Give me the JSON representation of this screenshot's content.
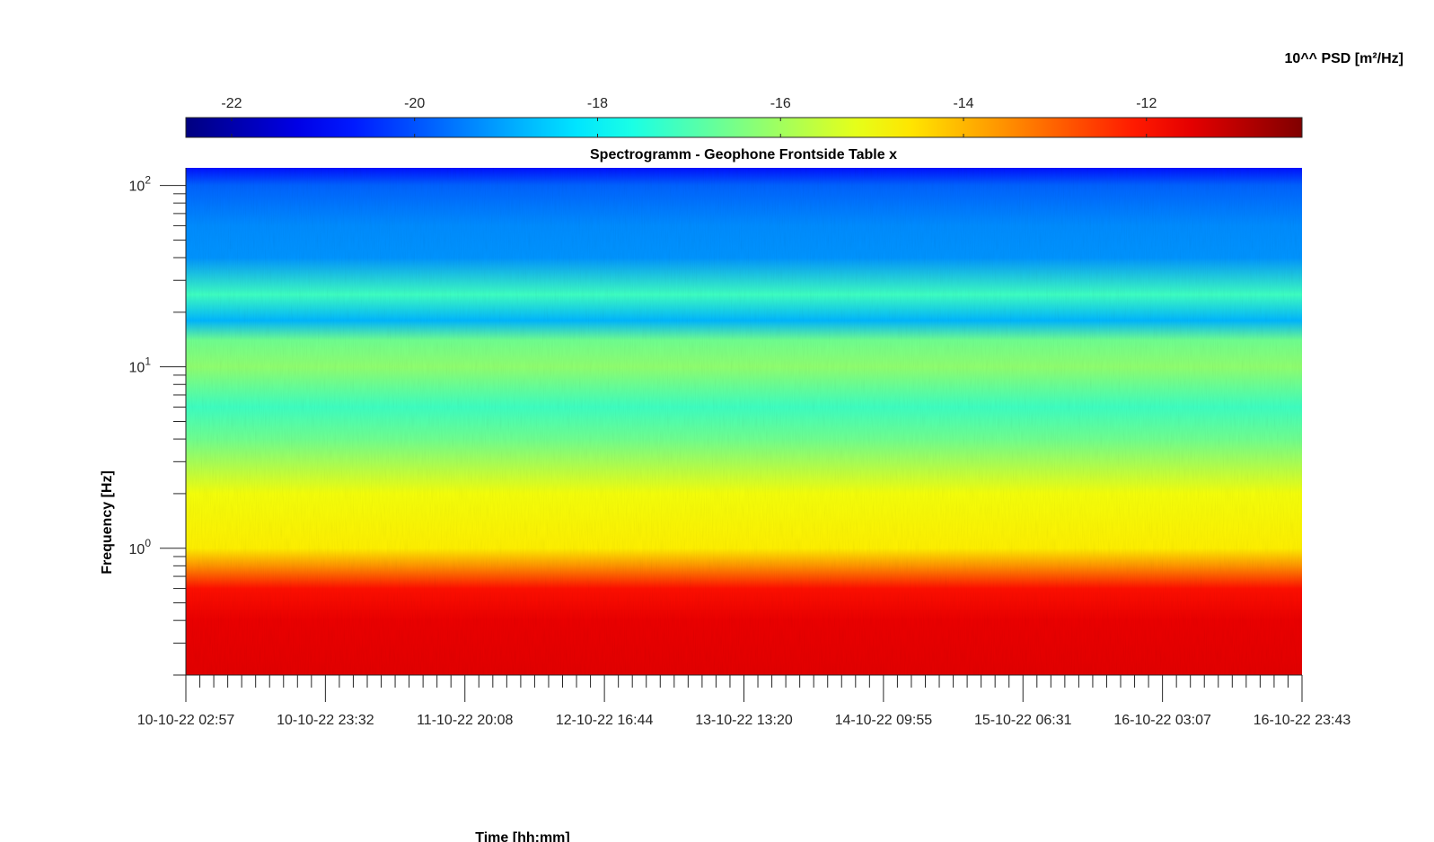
{
  "chart_data": {
    "type": "heatmap",
    "title": "Spectrogramm - Geophone Frontside Table x",
    "xlabel": "Time [hh:mm]",
    "ylabel": "Frequency [Hz]",
    "y_scale": "log",
    "ylim": [
      0.2,
      125
    ],
    "x_ticks": [
      "10-10-22 02:57",
      "10-10-22 23:32",
      "11-10-22 20:08",
      "12-10-22 16:44",
      "13-10-22 13:20",
      "14-10-22 09:55",
      "15-10-22 06:31",
      "16-10-22 03:07",
      "16-10-22 23:43"
    ],
    "y_ticks": [
      {
        "value": 1,
        "base": "10",
        "exp": "0"
      },
      {
        "value": 10,
        "base": "10",
        "exp": "1"
      },
      {
        "value": 100,
        "base": "10",
        "exp": "2"
      }
    ],
    "colorbar": {
      "label": "10^^ PSD [m²/Hz]",
      "range": [
        -22.5,
        -10.3
      ],
      "ticks": [
        "-22",
        "-20",
        "-18",
        "-16",
        "-14",
        "-12"
      ],
      "colormap": "jet",
      "location": "top"
    },
    "frequency_profile": [
      {
        "freq": 0.2,
        "psd": -11.5
      },
      {
        "freq": 0.4,
        "psd": -11.6
      },
      {
        "freq": 0.6,
        "psd": -12.0
      },
      {
        "freq": 0.8,
        "psd": -13.6
      },
      {
        "freq": 1.0,
        "psd": -14.7
      },
      {
        "freq": 2.0,
        "psd": -15.0
      },
      {
        "freq": 4.0,
        "psd": -16.6
      },
      {
        "freq": 6.0,
        "psd": -17.2
      },
      {
        "freq": 10.0,
        "psd": -16.2
      },
      {
        "freq": 14.0,
        "psd": -16.6
      },
      {
        "freq": 18.0,
        "psd": -18.8
      },
      {
        "freq": 25.0,
        "psd": -17.2
      },
      {
        "freq": 40.0,
        "psd": -19.2
      },
      {
        "freq": 60.0,
        "psd": -19.3
      },
      {
        "freq": 100.0,
        "psd": -19.8
      },
      {
        "freq": 125.0,
        "psd": -20.8
      }
    ]
  }
}
